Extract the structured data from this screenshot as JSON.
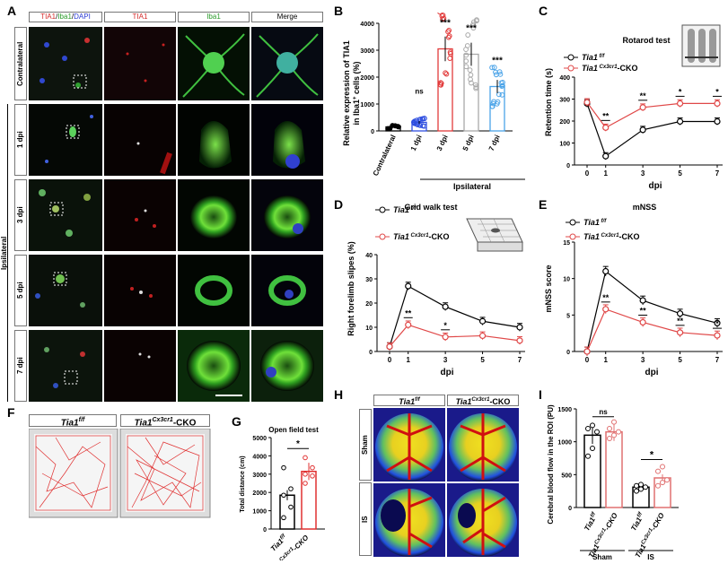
{
  "panel_letters": [
    "A",
    "B",
    "C",
    "D",
    "E",
    "F",
    "G",
    "H",
    "I"
  ],
  "panel_a": {
    "headers": [
      "TIA1/Iba1/DAPI",
      "TIA1",
      "Iba1",
      "Merge"
    ],
    "header_colors": [
      "#d42a2a",
      "#d42a2a",
      "#2a9a2a",
      "#000000"
    ],
    "header_tia1_part": "TIA1",
    "header_sep1": "/",
    "header_iba1_part": "Iba1",
    "header_sep2": "/",
    "header_dapi_part": "DAPI",
    "rows": [
      "Contralateral",
      "1 dpi",
      "3 dpi",
      "5 dpi",
      "7 dpi"
    ],
    "side_label": "Ipsilateral"
  },
  "chart_data": [
    {
      "panel": "B",
      "type": "bar",
      "ylabel": "Relative expression of TIA1 in Iba1+ cells (%)",
      "ylabel_line1": "Relative expression of TIA1",
      "ylabel_line2_pre": "in Iba1",
      "ylabel_line2_sup": "+",
      "ylabel_line2_post": " cells (%)",
      "yticks": [
        "0",
        "1000",
        "2000",
        "3000",
        "4000"
      ],
      "ylim": [
        0,
        4000
      ],
      "categories": [
        "Contralateral",
        "1 dpi",
        "3 dpi",
        "5 dpi",
        "7 dpi"
      ],
      "values": [
        150,
        320,
        3050,
        2850,
        1650
      ],
      "colors": [
        "#000000",
        "#2f4fe0",
        "#e23b3b",
        "#a9a9a9",
        "#4aa3e8"
      ],
      "significance": [
        "",
        "ns",
        "***",
        "***",
        "***"
      ],
      "group_label": "Ipsilateral"
    },
    {
      "panel": "C",
      "type": "line",
      "title": "Rotarod test",
      "ylabel": "Retention time (s)",
      "xlabel": "dpi",
      "yticks": [
        "0",
        "100",
        "200",
        "300",
        "400"
      ],
      "ylim": [
        0,
        400
      ],
      "x": [
        "0",
        "1",
        "3",
        "5",
        "7"
      ],
      "series": [
        {
          "name": "Tia1 f/f",
          "name_main": "Tia1",
          "name_sup": " f/f",
          "name_post": "",
          "color": "#000000",
          "values": [
            280,
            40,
            160,
            198,
            198
          ]
        },
        {
          "name": "Tia1 Cx3cr1-CKO",
          "name_main": "Tia1",
          "name_sup": " Cx3cr1",
          "name_post": "-CKO",
          "color": "#e04848",
          "values": [
            285,
            170,
            262,
            280,
            280
          ]
        }
      ],
      "significance": [
        "",
        "**",
        "**",
        "*",
        "*"
      ]
    },
    {
      "panel": "D",
      "type": "line",
      "title": "Grid walk test",
      "ylabel": "Right forelimb slipes (%)",
      "xlabel": "dpi",
      "yticks": [
        "0",
        "10",
        "20",
        "30",
        "40"
      ],
      "ylim": [
        0,
        40
      ],
      "x": [
        "0",
        "1",
        "3",
        "5",
        "7"
      ],
      "series": [
        {
          "name": "Tia1 f/f",
          "name_main": "Tia1",
          "name_sup": " f/f",
          "name_post": "",
          "color": "#000000",
          "values": [
            2,
            27,
            18.5,
            12.5,
            10
          ]
        },
        {
          "name": "Tia1 Cx3cr1-CKO",
          "name_main": "Tia1",
          "name_sup": " Cx3cr1",
          "name_post": "-CKO",
          "color": "#e04848",
          "values": [
            2,
            11,
            6,
            6.5,
            4.5
          ]
        }
      ],
      "significance": [
        "",
        "**",
        "*",
        "",
        ""
      ]
    },
    {
      "panel": "E",
      "type": "line",
      "title": "mNSS",
      "ylabel": "mNSS score",
      "xlabel": "dpi",
      "yticks": [
        "0",
        "5",
        "10",
        "15"
      ],
      "ylim": [
        0,
        15
      ],
      "x": [
        "0",
        "1",
        "3",
        "5",
        "7"
      ],
      "series": [
        {
          "name": "Tia1 f/f",
          "name_main": "Tia1",
          "name_sup": " f/f",
          "name_post": "",
          "color": "#000000",
          "values": [
            0,
            11,
            7,
            5.2,
            3.9
          ]
        },
        {
          "name": "Tia1 Cx3cr1-CKO",
          "name_main": "Tia1",
          "name_sup": " Cx3cr1",
          "name_post": "-CKO",
          "color": "#e04848",
          "values": [
            0,
            5.8,
            4,
            2.6,
            2.2
          ]
        }
      ],
      "significance": [
        "",
        "**",
        "**",
        "**",
        "*"
      ]
    },
    {
      "panel": "G",
      "type": "bar",
      "title": "Open field test",
      "ylabel": "Total distance (cm)",
      "yticks": [
        "0",
        "1000",
        "2000",
        "3000",
        "4000",
        "5000"
      ],
      "ylim": [
        0,
        5000
      ],
      "categories": [
        "Tia1f/f",
        "Tia1Cx3cr1-CKO"
      ],
      "values": [
        1850,
        3150
      ],
      "colors": [
        "#000000",
        "#e03030"
      ],
      "points": [
        [
          620,
          1200,
          1850,
          2200,
          3350
        ],
        [
          2500,
          2900,
          3000,
          3350,
          3900
        ]
      ],
      "significance": [
        "*"
      ]
    },
    {
      "panel": "I",
      "type": "bar",
      "ylabel": "Cerebral blood flow in the ROI (PU)",
      "yticks": [
        "0",
        "500",
        "1000",
        "1500"
      ],
      "ylim": [
        0,
        1500
      ],
      "categories": [
        "Tia1f/f",
        "Tia1Cx3cr1-CKO",
        "Tia1f/f",
        "Tia1Cx3cr1-CKO"
      ],
      "group_labels": [
        "Sham",
        "IS"
      ],
      "values": [
        1100,
        1150,
        310,
        450
      ],
      "colors": [
        "#000000",
        "#e07070",
        "#000000",
        "#e07070"
      ],
      "points": [
        [
          780,
          900,
          1150,
          1200,
          1250
        ],
        [
          1050,
          1100,
          1150,
          1200,
          1300
        ],
        [
          250,
          280,
          310,
          330,
          350
        ],
        [
          330,
          380,
          420,
          550,
          620
        ]
      ],
      "significance": [
        "ns",
        "*"
      ]
    }
  ],
  "panel_f": {
    "labels": [
      "Tia1f/f",
      "Tia1Cx3cr1-CKO"
    ]
  },
  "panel_h": {
    "labels": [
      "Tia1f/f",
      "Tia1Cx3cr1-CKO"
    ],
    "rows": [
      "Sham",
      "IS"
    ]
  },
  "xlabels_g": {
    "a_main": "Tia1",
    "a_sup": "f/f",
    "a_post": "",
    "b_main": "Tia1",
    "b_sup": "Cx3cr1",
    "b_post": "-CKO"
  }
}
